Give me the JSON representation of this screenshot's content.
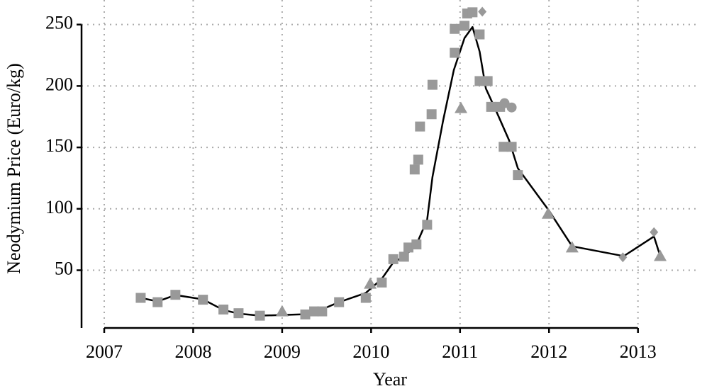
{
  "chart_data": {
    "type": "scatter",
    "xlabel": "Year",
    "ylabel": "Neodymium Price (Euro/kg)",
    "xlim": [
      2006.745,
      2013.68
    ],
    "xticks": [
      2007,
      2008,
      2009,
      2010,
      2011,
      2012,
      2013
    ],
    "ylim": [
      3,
      270
    ],
    "yticks": [
      50,
      100,
      150,
      200,
      250
    ],
    "grid": true,
    "series": [
      {
        "marker": "square",
        "color": "#999999",
        "x": [
          2007.41,
          2007.6,
          2007.8,
          2008.11,
          2008.34,
          2008.51,
          2008.75,
          2009.26,
          2009.36,
          2009.45,
          2009.64,
          2009.94,
          2010.12,
          2010.25,
          2010.37,
          2010.42,
          2010.51,
          2010.63,
          2010.49,
          2010.53,
          2010.55,
          2010.68,
          2010.69,
          2010.94,
          2010.94,
          2011.05,
          2011.08,
          2011.14,
          2011.22,
          2011.22,
          2011.31,
          2011.35,
          2011.45,
          2011.49,
          2011.58,
          2011.65
        ],
        "values": [
          27.5,
          24,
          30,
          26,
          18,
          15,
          13,
          14,
          16.5,
          16.5,
          24,
          27.5,
          40,
          59,
          61,
          68.5,
          71,
          87,
          132,
          140,
          167,
          177,
          201,
          246.5,
          227,
          249,
          259,
          260,
          242,
          204,
          204,
          183,
          183,
          150.5,
          150.5,
          127.5
        ]
      },
      {
        "marker": "triangle",
        "color": "#999999",
        "x": [
          2009.0,
          2009.99,
          2011.01,
          2011.99,
          2012.26,
          2013.25
        ],
        "values": [
          16.5,
          39,
          182,
          96,
          68.5,
          61.5
        ]
      },
      {
        "marker": "diamond",
        "color": "#999999",
        "x": [
          2011.25,
          2012.83,
          2013.18
        ],
        "values": [
          260.5,
          60.5,
          81
        ]
      },
      {
        "marker": "circle",
        "color": "#999999",
        "x": [
          2011.5,
          2011.58
        ],
        "values": [
          186,
          182.5
        ]
      },
      {
        "marker": "line",
        "color": "#000000",
        "x": [
          2007.41,
          2007.6,
          2007.8,
          2008.11,
          2008.34,
          2008.51,
          2008.75,
          2009.02,
          2009.26,
          2009.45,
          2009.64,
          2009.94,
          2010.12,
          2010.25,
          2010.37,
          2010.51,
          2010.63,
          2010.69,
          2010.81,
          2010.93,
          2011.05,
          2011.14,
          2011.22,
          2011.29,
          2011.41,
          2011.55,
          2011.65,
          2012.0,
          2012.26,
          2012.84,
          2013.18,
          2013.25
        ],
        "values": [
          27.5,
          24.6,
          29.8,
          26.3,
          17.6,
          14.7,
          13,
          13.6,
          14.2,
          18.2,
          24,
          31.5,
          43,
          56.4,
          61,
          71,
          91,
          126,
          172,
          213,
          239,
          248,
          228,
          198,
          179,
          156,
          133,
          98.5,
          69.5,
          61.5,
          77.5,
          61.5
        ]
      }
    ]
  }
}
